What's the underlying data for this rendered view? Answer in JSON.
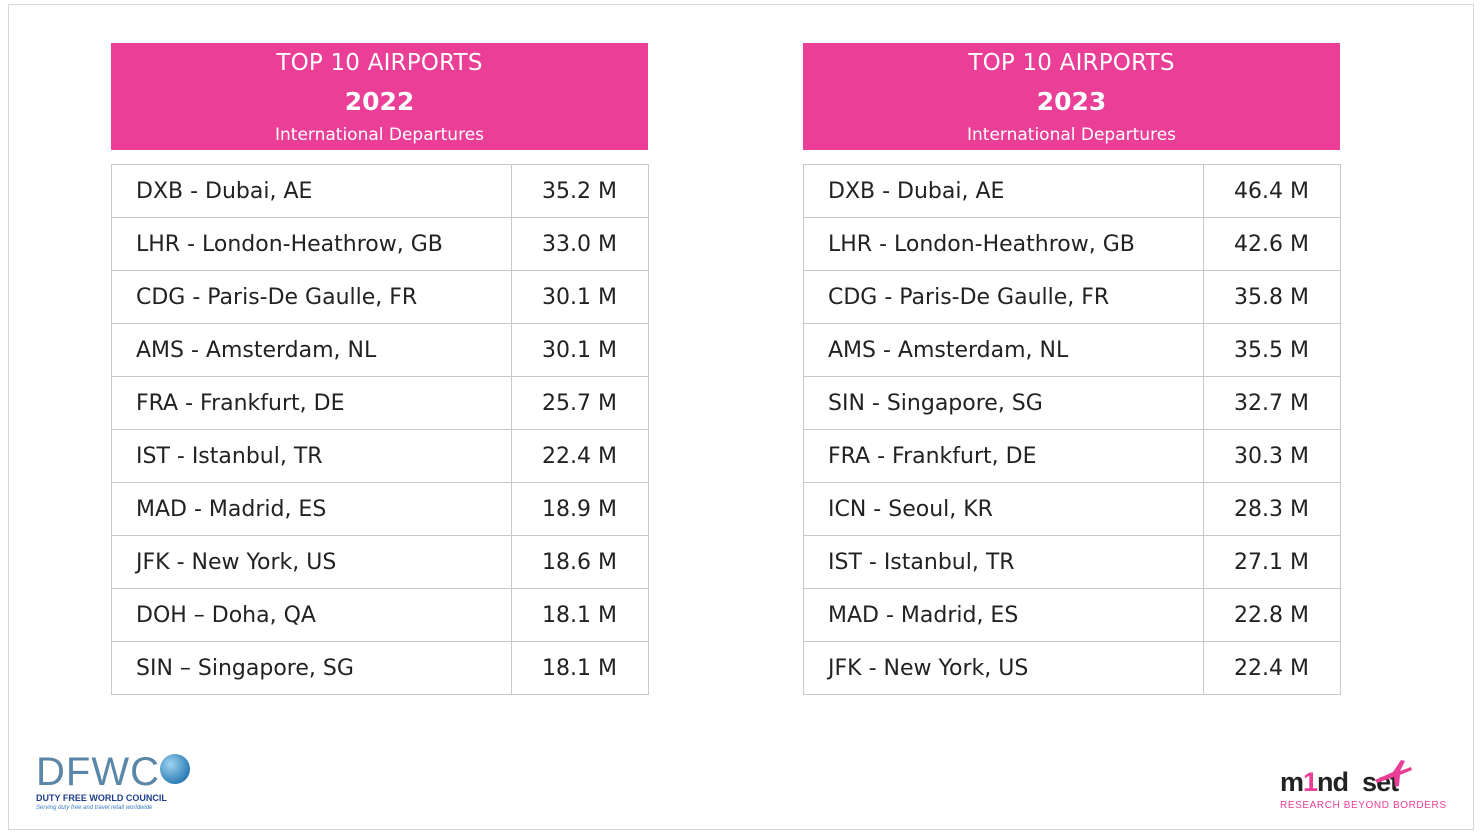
{
  "panels": [
    {
      "title": "TOP 10 AIRPORTS",
      "year": "2022",
      "subtitle": "International Departures",
      "rows": [
        {
          "airport": "DXB - Dubai, AE",
          "value": "35.2 M"
        },
        {
          "airport": "LHR - London-Heathrow, GB",
          "value": "33.0 M"
        },
        {
          "airport": "CDG - Paris-De Gaulle, FR",
          "value": "30.1 M"
        },
        {
          "airport": "AMS - Amsterdam, NL",
          "value": "30.1 M"
        },
        {
          "airport": "FRA - Frankfurt, DE",
          "value": "25.7 M"
        },
        {
          "airport": "IST - Istanbul, TR",
          "value": "22.4 M"
        },
        {
          "airport": "MAD - Madrid, ES",
          "value": "18.9 M"
        },
        {
          "airport": "JFK - New York, US",
          "value": "18.6 M"
        },
        {
          "airport": "DOH – Doha, QA",
          "value": "18.1 M"
        },
        {
          "airport": "SIN – Singapore, SG",
          "value": "18.1 M"
        }
      ]
    },
    {
      "title": "TOP 10 AIRPORTS",
      "year": "2023",
      "subtitle": "International Departures",
      "rows": [
        {
          "airport": "DXB - Dubai, AE",
          "value": "46.4 M"
        },
        {
          "airport": "LHR - London-Heathrow, GB",
          "value": "42.6 M"
        },
        {
          "airport": "CDG - Paris-De Gaulle, FR",
          "value": "35.8 M"
        },
        {
          "airport": "AMS - Amsterdam, NL",
          "value": "35.5 M"
        },
        {
          "airport": "SIN - Singapore, SG",
          "value": "32.7 M"
        },
        {
          "airport": "FRA - Frankfurt, DE",
          "value": "30.3 M"
        },
        {
          "airport": "ICN - Seoul, KR",
          "value": "28.3 M"
        },
        {
          "airport": "IST - Istanbul, TR",
          "value": "27.1 M"
        },
        {
          "airport": "MAD - Madrid, ES",
          "value": "22.8 M"
        },
        {
          "airport": "JFK - New York, US",
          "value": "22.4 M"
        }
      ]
    }
  ],
  "logos": {
    "left": {
      "mark": "DFWC",
      "name": "DUTY FREE WORLD COUNCIL",
      "tagline": "Serving duty free and travel retail worldwide",
      "icon": "globe-icon"
    },
    "right": {
      "word_part1": "m",
      "word_part2": "1",
      "word_part3": "nd",
      "word_part4": "set",
      "tagline": "RESEARCH BEYOND BORDERS",
      "icon": "airplane-icon"
    }
  },
  "colors": {
    "header_pink": "#ea3e97",
    "border": "#c8c8c8",
    "text": "#222222"
  }
}
